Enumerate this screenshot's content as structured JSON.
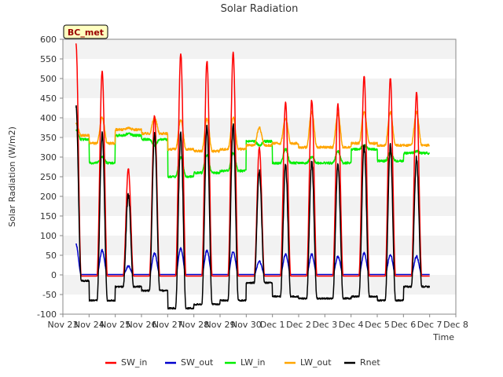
{
  "chart_data": {
    "type": "line",
    "title": "Solar Radiation",
    "xlabel": "Time",
    "ylabel": "Solar Radiation (W/m2)",
    "ylim": [
      -100,
      600
    ],
    "yticks": [
      -100,
      -50,
      0,
      50,
      100,
      150,
      200,
      250,
      300,
      350,
      400,
      450,
      500,
      550,
      600
    ],
    "xlim": [
      0,
      15
    ],
    "xticks": [
      {
        "v": 0,
        "label": "Nov 23"
      },
      {
        "v": 1,
        "label": "Nov 24"
      },
      {
        "v": 2,
        "label": "Nov 25"
      },
      {
        "v": 3,
        "label": "Nov 26"
      },
      {
        "v": 4,
        "label": "Nov 27"
      },
      {
        "v": 5,
        "label": "Nov 28"
      },
      {
        "v": 6,
        "label": "Nov 29"
      },
      {
        "v": 7,
        "label": "Nov 30"
      },
      {
        "v": 8,
        "label": "Dec 1"
      },
      {
        "v": 9,
        "label": "Dec 2"
      },
      {
        "v": 10,
        "label": "Dec 3"
      },
      {
        "v": 11,
        "label": "Dec 4"
      },
      {
        "v": 12,
        "label": "Dec 5"
      },
      {
        "v": 13,
        "label": "Dec 6"
      },
      {
        "v": 14,
        "label": "Dec 7"
      },
      {
        "v": 15,
        "label": "Dec 8"
      }
    ],
    "grid": "horizontal bands",
    "legend_position": "bottom",
    "annotation": "BC_met",
    "daily_start": "Nov 23",
    "series": [
      {
        "name": "SW_in",
        "color": "#ff0000",
        "night": -3,
        "daily_peak": [
          590,
          520,
          270,
          405,
          565,
          545,
          565,
          325,
          440,
          445,
          435,
          505,
          500,
          465
        ]
      },
      {
        "name": "SW_out",
        "color": "#0000cc",
        "night": 1,
        "daily_peak": [
          78,
          62,
          22,
          55,
          67,
          62,
          60,
          35,
          52,
          52,
          47,
          55,
          52,
          47
        ]
      },
      {
        "name": "LW_in",
        "color": "#00ee00",
        "daily_night": [
          345,
          285,
          355,
          345,
          250,
          260,
          265,
          340,
          285,
          285,
          285,
          320,
          290,
          310
        ],
        "daily_day": [
          370,
          300,
          360,
          330,
          300,
          305,
          310,
          330,
          320,
          300,
          315,
          330,
          310,
          315
        ]
      },
      {
        "name": "LW_out",
        "color": "#ffa500",
        "daily_night": [
          355,
          335,
          370,
          360,
          320,
          315,
          320,
          330,
          335,
          325,
          325,
          335,
          330,
          330
        ],
        "daily_day": [
          385,
          400,
          375,
          400,
          395,
          398,
          400,
          375,
          398,
          415,
          410,
          415,
          415,
          415
        ]
      },
      {
        "name": "Rnet",
        "color": "#000000",
        "daily_night": [
          -15,
          -65,
          -30,
          -40,
          -85,
          -75,
          -65,
          -20,
          -55,
          -60,
          -60,
          -55,
          -65,
          -30
        ],
        "daily_peak": [
          430,
          360,
          205,
          360,
          360,
          375,
          380,
          265,
          275,
          285,
          280,
          330,
          330,
          295
        ]
      }
    ]
  }
}
